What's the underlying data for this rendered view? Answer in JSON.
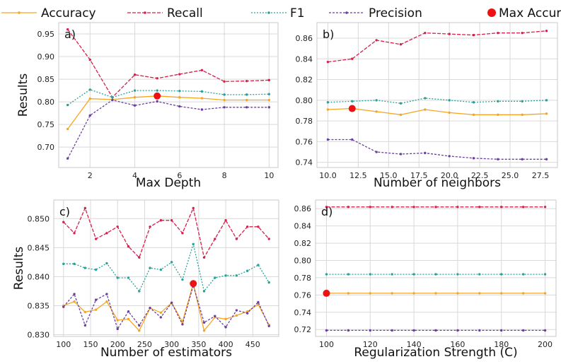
{
  "legend": [
    {
      "key": "accuracy",
      "label": "Accuracy"
    },
    {
      "key": "recall",
      "label": "Recall"
    },
    {
      "key": "f1",
      "label": "F1"
    },
    {
      "key": "precision",
      "label": "Precision"
    },
    {
      "key": "max",
      "label": "Max Accuracy"
    }
  ],
  "colors": {
    "accuracy": "#f5a623",
    "recall": "#d81e4a",
    "f1": "#2aa198",
    "precision": "#6a3fa0",
    "max": "#ee1111"
  },
  "chart_data": [
    {
      "type": "line",
      "panel_label": "a)",
      "xlabel": "Max Depth",
      "ylabel": "Results",
      "xlim": [
        0.6,
        10.4
      ],
      "ylim": [
        0.655,
        0.975
      ],
      "xticks": [
        2,
        4,
        6,
        8,
        10
      ],
      "xtick_labels": [
        "2",
        "4",
        "6",
        "8",
        "10"
      ],
      "yticks": [
        0.7,
        0.75,
        0.8,
        0.85,
        0.9,
        0.95
      ],
      "ytick_labels": [
        "0.70",
        "0.75",
        "0.80",
        "0.85",
        "0.90",
        "0.95"
      ],
      "x": [
        1,
        2,
        3,
        4,
        5,
        6,
        7,
        8,
        9,
        10
      ],
      "series": [
        {
          "key": "accuracy",
          "name": "Accuracy",
          "values": [
            0.74,
            0.807,
            0.805,
            0.81,
            0.813,
            0.81,
            0.808,
            0.804,
            0.804,
            0.804
          ]
        },
        {
          "key": "recall",
          "name": "Recall",
          "values": [
            0.96,
            0.893,
            0.81,
            0.86,
            0.852,
            0.861,
            0.87,
            0.845,
            0.846,
            0.848
          ]
        },
        {
          "key": "f1",
          "name": "F1",
          "values": [
            0.793,
            0.827,
            0.81,
            0.825,
            0.825,
            0.824,
            0.823,
            0.816,
            0.816,
            0.817
          ]
        },
        {
          "key": "precision",
          "name": "Precision",
          "values": [
            0.675,
            0.77,
            0.804,
            0.792,
            0.801,
            0.79,
            0.783,
            0.788,
            0.788,
            0.788
          ]
        }
      ],
      "max": {
        "x": 5,
        "y": 0.813
      }
    },
    {
      "type": "line",
      "panel_label": "b)",
      "xlabel": "Number of neighbors",
      "ylabel": "",
      "xlim": [
        9.1,
        28.9
      ],
      "ylim": [
        0.735,
        0.875
      ],
      "xticks": [
        10,
        12.5,
        15,
        17.5,
        20,
        22.5,
        25,
        27.5
      ],
      "xtick_labels": [
        "10.0",
        "12.5",
        "15.0",
        "17.5",
        "20.0",
        "22.5",
        "25.0",
        "27.5"
      ],
      "yticks": [
        0.74,
        0.76,
        0.78,
        0.8,
        0.82,
        0.84,
        0.86
      ],
      "ytick_labels": [
        "0.74",
        "0.76",
        "0.78",
        "0.80",
        "0.82",
        "0.84",
        "0.86"
      ],
      "x": [
        10,
        12,
        14,
        16,
        18,
        20,
        22,
        24,
        26,
        28
      ],
      "series": [
        {
          "key": "accuracy",
          "name": "Accuracy",
          "values": [
            0.791,
            0.792,
            0.789,
            0.786,
            0.791,
            0.788,
            0.786,
            0.786,
            0.786,
            0.787
          ]
        },
        {
          "key": "recall",
          "name": "Recall",
          "values": [
            0.837,
            0.84,
            0.858,
            0.854,
            0.865,
            0.864,
            0.863,
            0.865,
            0.865,
            0.867
          ]
        },
        {
          "key": "f1",
          "name": "F1",
          "values": [
            0.798,
            0.799,
            0.8,
            0.797,
            0.802,
            0.8,
            0.798,
            0.799,
            0.799,
            0.8
          ]
        },
        {
          "key": "precision",
          "name": "Precision",
          "values": [
            0.762,
            0.762,
            0.75,
            0.748,
            0.749,
            0.746,
            0.744,
            0.743,
            0.743,
            0.743
          ]
        }
      ],
      "max": {
        "x": 12,
        "y": 0.792
      }
    },
    {
      "type": "line",
      "panel_label": "c)",
      "xlabel": "Number of estimators",
      "ylabel": "Results",
      "xlim": [
        82,
        498
      ],
      "ylim": [
        0.8297,
        0.8532
      ],
      "xticks": [
        100,
        150,
        200,
        250,
        300,
        350,
        400,
        450
      ],
      "xtick_labels": [
        "100",
        "150",
        "200",
        "250",
        "300",
        "350",
        "400",
        "450"
      ],
      "yticks": [
        0.83,
        0.835,
        0.84,
        0.845,
        0.85
      ],
      "ytick_labels": [
        "0.830",
        "0.835",
        "0.840",
        "0.845",
        "0.850"
      ],
      "x": [
        100,
        120,
        140,
        160,
        180,
        200,
        220,
        240,
        260,
        280,
        300,
        320,
        340,
        360,
        380,
        400,
        420,
        440,
        460,
        480
      ],
      "series": [
        {
          "key": "accuracy",
          "name": "Accuracy",
          "values": [
            0.835,
            0.8357,
            0.8339,
            0.8343,
            0.8357,
            0.8325,
            0.8327,
            0.8307,
            0.8346,
            0.8338,
            0.8355,
            0.8322,
            0.8388,
            0.8307,
            0.833,
            0.8327,
            0.8333,
            0.834,
            0.8352,
            0.8317
          ]
        },
        {
          "key": "recall",
          "name": "Recall",
          "values": [
            0.8494,
            0.8475,
            0.8518,
            0.8465,
            0.8475,
            0.8486,
            0.8452,
            0.8433,
            0.8486,
            0.8497,
            0.8497,
            0.8475,
            0.8518,
            0.8433,
            0.8465,
            0.8497,
            0.8465,
            0.8486,
            0.8486,
            0.8465
          ]
        },
        {
          "key": "f1",
          "name": "F1",
          "values": [
            0.8422,
            0.8422,
            0.8415,
            0.8412,
            0.8423,
            0.8398,
            0.8398,
            0.8375,
            0.8415,
            0.8412,
            0.8425,
            0.8395,
            0.8456,
            0.8375,
            0.8398,
            0.8402,
            0.8402,
            0.841,
            0.842,
            0.839
          ]
        },
        {
          "key": "precision",
          "name": "Precision",
          "values": [
            0.8348,
            0.837,
            0.8316,
            0.836,
            0.837,
            0.831,
            0.834,
            0.8316,
            0.8346,
            0.833,
            0.8355,
            0.8318,
            0.8385,
            0.8321,
            0.8332,
            0.8313,
            0.8342,
            0.8337,
            0.8356,
            0.8315
          ]
        }
      ],
      "max": {
        "x": 340,
        "y": 0.8388
      }
    },
    {
      "type": "line",
      "panel_label": "d)",
      "xlabel": "Regularization Strength (C)",
      "ylabel": "",
      "xlim": [
        95,
        205
      ],
      "ylim": [
        0.712,
        0.87
      ],
      "xticks": [
        100,
        120,
        140,
        160,
        180,
        200
      ],
      "xtick_labels": [
        "100",
        "120",
        "140",
        "160",
        "180",
        "200"
      ],
      "yticks": [
        0.72,
        0.74,
        0.76,
        0.78,
        0.8,
        0.82,
        0.84,
        0.86
      ],
      "ytick_labels": [
        "0.72",
        "0.74",
        "0.76",
        "0.78",
        "0.80",
        "0.82",
        "0.84",
        "0.86"
      ],
      "x": [
        100,
        110,
        120,
        130,
        140,
        150,
        160,
        170,
        180,
        190,
        200
      ],
      "series": [
        {
          "key": "accuracy",
          "name": "Accuracy",
          "values": [
            0.762,
            0.762,
            0.762,
            0.762,
            0.762,
            0.762,
            0.762,
            0.762,
            0.762,
            0.762,
            0.762
          ]
        },
        {
          "key": "recall",
          "name": "Recall",
          "values": [
            0.862,
            0.862,
            0.862,
            0.862,
            0.862,
            0.862,
            0.862,
            0.862,
            0.862,
            0.862,
            0.862
          ]
        },
        {
          "key": "f1",
          "name": "F1",
          "values": [
            0.784,
            0.784,
            0.784,
            0.784,
            0.784,
            0.784,
            0.784,
            0.784,
            0.784,
            0.784,
            0.784
          ]
        },
        {
          "key": "precision",
          "name": "Precision",
          "values": [
            0.719,
            0.719,
            0.719,
            0.719,
            0.719,
            0.719,
            0.719,
            0.719,
            0.719,
            0.719,
            0.719
          ]
        }
      ],
      "max": {
        "x": 100,
        "y": 0.762
      }
    }
  ]
}
